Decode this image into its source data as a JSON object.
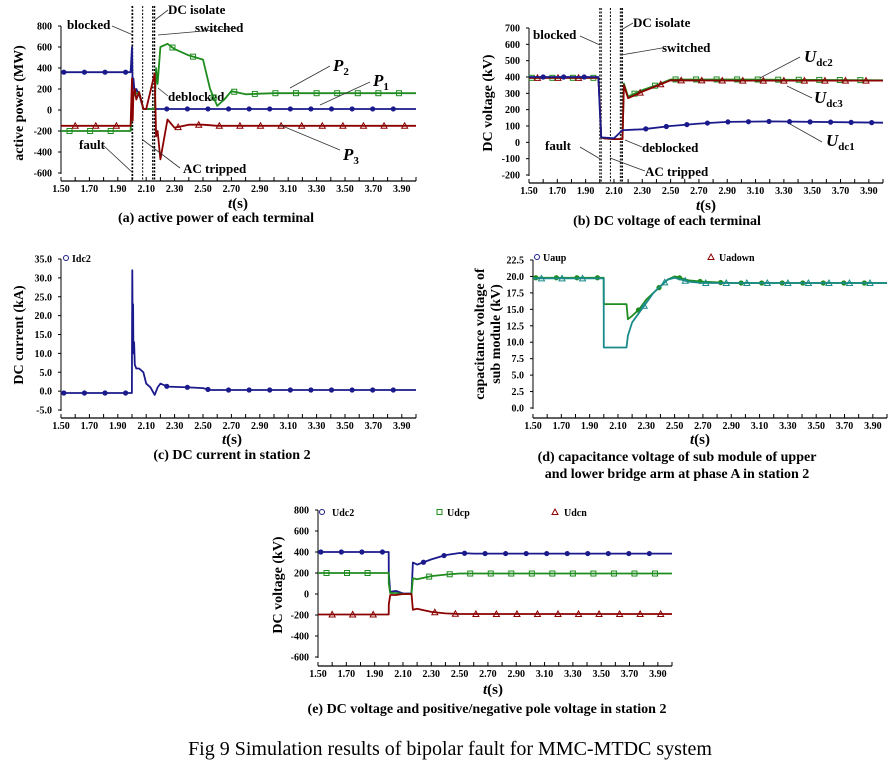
{
  "figure_caption": "Fig 9 Simulation results of bipolar fault for MMC-MTDC system",
  "colors": {
    "blue": "#1a1a8c",
    "green": "#1e8c1e",
    "red": "#8b0000",
    "teal": "#1a8a8a",
    "purple": "#7a1a7a"
  },
  "chart_data": [
    {
      "id": "a",
      "type": "line",
      "caption": "(a) active power of each terminal",
      "xlabel_var": "t",
      "xlabel_unit": "(s)",
      "ylabel": "active power (MW)",
      "xlim": [
        1.5,
        4.0
      ],
      "ylim": [
        -600,
        800
      ],
      "xticks": [
        "1.50",
        "1.70",
        "1.90",
        "2.10",
        "2.30",
        "2.50",
        "2.70",
        "2.90",
        "3.10",
        "3.30",
        "3.50",
        "3.70",
        "3.90"
      ],
      "yticks": [
        "800",
        "600",
        "400",
        "200",
        "0",
        "-200",
        "-400",
        "-600"
      ],
      "ytick_values": [
        800,
        600,
        400,
        200,
        0,
        -200,
        -400,
        -600
      ],
      "event_lines": [
        2.0,
        2.005,
        2.075,
        2.145,
        2.155,
        2.16
      ],
      "annotations": [
        "blocked",
        "DC isolate",
        "switched",
        "deblocked",
        "fault",
        "AC tripped"
      ],
      "series": [
        {
          "name": "P1",
          "label_main": "P",
          "label_sub": "1",
          "color": "blue",
          "marker": "circle",
          "x": [
            1.5,
            1.99,
            2.0,
            2.005,
            2.01,
            2.02,
            2.03,
            2.05,
            2.08,
            2.1,
            2.16,
            2.17,
            2.3,
            2.5,
            3.0,
            3.5,
            4.0
          ],
          "y": [
            360,
            360,
            600,
            200,
            300,
            150,
            200,
            150,
            10,
            10,
            10,
            10,
            10,
            10,
            10,
            10,
            10
          ]
        },
        {
          "name": "P2",
          "label_main": "P",
          "label_sub": "2",
          "color": "green",
          "marker": "square",
          "x": [
            1.5,
            1.99,
            2.0,
            2.02,
            2.05,
            2.08,
            2.1,
            2.16,
            2.17,
            2.18,
            2.2,
            2.25,
            2.3,
            2.4,
            2.5,
            2.55,
            2.6,
            2.65,
            2.7,
            2.8,
            2.9,
            3.0,
            3.5,
            4.0
          ],
          "y": [
            -200,
            -200,
            100,
            150,
            170,
            10,
            10,
            10,
            400,
            250,
            600,
            630,
            580,
            520,
            480,
            200,
            40,
            100,
            180,
            150,
            155,
            160,
            160,
            160
          ]
        },
        {
          "name": "P3",
          "label_main": "P",
          "label_sub": "3",
          "color": "red",
          "marker": "triangle",
          "x": [
            1.5,
            1.99,
            2.0,
            2.005,
            2.01,
            2.02,
            2.03,
            2.05,
            2.08,
            2.1,
            2.16,
            2.17,
            2.18,
            2.2,
            2.25,
            2.3,
            2.4,
            2.5,
            2.6,
            2.7,
            3.0,
            3.5,
            4.0
          ],
          "y": [
            -150,
            -150,
            300,
            -100,
            150,
            200,
            100,
            170,
            10,
            10,
            350,
            -250,
            -200,
            -470,
            -90,
            -170,
            -140,
            -140,
            -150,
            -150,
            -150,
            -150,
            -150
          ]
        }
      ]
    },
    {
      "id": "b",
      "type": "line",
      "caption": "(b) DC voltage of each terminal",
      "xlabel_var": "t",
      "xlabel_unit": "(s)",
      "ylabel": "DC voltage (kV)",
      "xlim": [
        1.5,
        4.0
      ],
      "ylim": [
        -200,
        700
      ],
      "xticks": [
        "1.50",
        "1.70",
        "1.90",
        "2.10",
        "2.30",
        "2.50",
        "2.70",
        "2.90",
        "3.10",
        "3.30",
        "3.50",
        "3.70",
        "3.90"
      ],
      "yticks": [
        "700",
        "600",
        "500",
        "400",
        "300",
        "200",
        "100",
        "0",
        "-100",
        "-200"
      ],
      "ytick_values": [
        700,
        600,
        500,
        400,
        300,
        200,
        100,
        0,
        -100,
        -200
      ],
      "event_lines": [
        2.0,
        2.01,
        2.075,
        2.145,
        2.155,
        2.16
      ],
      "annotations": [
        "blocked",
        "DC isolate",
        "switched",
        "deblocked",
        "fault",
        "AC tripped"
      ],
      "series": [
        {
          "name": "Udc2",
          "label_main": "U",
          "label_sub": "dc2",
          "color": "green",
          "marker": "square",
          "x": [
            1.5,
            1.99,
            2.0,
            2.01,
            2.03,
            2.1,
            2.16,
            2.17,
            2.2,
            2.3,
            2.4,
            2.5,
            3.0,
            4.0
          ],
          "y": [
            395,
            395,
            230,
            30,
            25,
            20,
            20,
            360,
            280,
            320,
            350,
            385,
            385,
            380
          ]
        },
        {
          "name": "Udc3",
          "label_main": "U",
          "label_sub": "dc3",
          "color": "red",
          "marker": "triangle",
          "x": [
            1.5,
            1.99,
            2.0,
            2.01,
            2.03,
            2.1,
            2.16,
            2.17,
            2.2,
            2.3,
            2.4,
            2.5,
            3.0,
            4.0
          ],
          "y": [
            395,
            395,
            230,
            30,
            25,
            20,
            20,
            350,
            270,
            310,
            345,
            380,
            378,
            378
          ]
        },
        {
          "name": "Udc1",
          "label_main": "U",
          "label_sub": "dc1",
          "color": "blue",
          "marker": "circle",
          "x": [
            1.5,
            1.99,
            2.0,
            2.01,
            2.1,
            2.16,
            2.17,
            2.3,
            2.5,
            2.7,
            2.9,
            3.2,
            4.0
          ],
          "y": [
            400,
            400,
            200,
            30,
            25,
            75,
            75,
            80,
            100,
            115,
            125,
            128,
            120
          ]
        }
      ]
    },
    {
      "id": "c",
      "type": "line",
      "caption": "(c) DC current in station 2",
      "xlabel_var": "t",
      "xlabel_unit": "(s)",
      "ylabel": "DC current (kA)",
      "xlim": [
        1.5,
        4.0
      ],
      "ylim": [
        -5,
        35
      ],
      "xticks": [
        "1.50",
        "1.70",
        "1.90",
        "2.10",
        "2.30",
        "2.50",
        "2.70",
        "2.90",
        "3.10",
        "3.30",
        "3.50",
        "3.70",
        "3.90"
      ],
      "yticks": [
        "35.0",
        "30.0",
        "25.0",
        "20.0",
        "15.0",
        "10.0",
        "5.0",
        "0.0",
        "-5.0"
      ],
      "ytick_values": [
        35,
        30,
        25,
        20,
        15,
        10,
        5,
        0,
        -5
      ],
      "legend": [
        "Idc2"
      ],
      "series": [
        {
          "name": "Idc2",
          "color": "blue",
          "marker": "circle",
          "x": [
            1.5,
            1.999,
            2.0,
            2.002,
            2.005,
            2.008,
            2.01,
            2.015,
            2.02,
            2.03,
            2.05,
            2.08,
            2.1,
            2.13,
            2.16,
            2.18,
            2.2,
            2.25,
            2.4,
            2.5,
            2.55,
            2.7,
            3.0,
            4.0
          ],
          "y": [
            -0.5,
            -0.5,
            11,
            32,
            15,
            23,
            10,
            13,
            7,
            6,
            6,
            5,
            2,
            1,
            -1,
            1,
            2,
            1.2,
            1,
            0.8,
            0.3,
            0.3,
            0.3,
            0.3
          ]
        }
      ]
    },
    {
      "id": "d",
      "type": "line",
      "caption_line1": "(d) capacitance voltage of sub module of upper",
      "caption_line2": "and lower bridge arm at phase A in station 2",
      "xlabel_var": "t",
      "xlabel_unit": "(s)",
      "ylabel_line1": "capacitance voltage of",
      "ylabel_line2": "sub module (kV)",
      "xlim": [
        1.5,
        4.0
      ],
      "ylim": [
        0,
        22.5
      ],
      "xticks": [
        "1.50",
        "1.70",
        "1.90",
        "2.10",
        "2.30",
        "2.50",
        "2.70",
        "2.90",
        "3.10",
        "3.30",
        "3.50",
        "3.70",
        "3.90"
      ],
      "yticks": [
        "22.5",
        "20.0",
        "17.5",
        "15.0",
        "12.5",
        "10.0",
        "7.5",
        "5.0",
        "2.5",
        "0.0"
      ],
      "ytick_values": [
        22.5,
        20,
        17.5,
        15,
        12.5,
        10,
        7.5,
        5,
        2.5,
        0
      ],
      "legend": [
        "Uaup",
        "Uadown"
      ],
      "series": [
        {
          "name": "Uaup",
          "color": "green",
          "marker": "circle",
          "x": [
            1.5,
            1.999,
            2.0,
            2.16,
            2.17,
            2.2,
            2.25,
            2.3,
            2.35,
            2.4,
            2.45,
            2.5,
            2.6,
            2.7,
            2.9,
            3.2,
            4.0
          ],
          "y": [
            19.8,
            19.8,
            15.8,
            15.8,
            13.5,
            14,
            15,
            16.5,
            17.5,
            18.5,
            19.5,
            20,
            19.4,
            19.2,
            19,
            19,
            19
          ]
        },
        {
          "name": "Uadown",
          "color": "teal",
          "marker": "triangle",
          "x": [
            1.5,
            1.999,
            2.0,
            2.16,
            2.17,
            2.2,
            2.25,
            2.3,
            2.35,
            2.4,
            2.45,
            2.5,
            2.6,
            2.7,
            2.9,
            3.2,
            4.0
          ],
          "y": [
            19.7,
            19.7,
            9.2,
            9.2,
            11,
            13,
            14.5,
            16,
            17.5,
            18.5,
            19.5,
            19.8,
            19.2,
            19,
            19,
            19,
            19
          ]
        }
      ]
    },
    {
      "id": "e",
      "type": "line",
      "caption": "(e) DC voltage and positive/negative pole voltage in station 2",
      "xlabel_var": "t",
      "xlabel_unit": "(s)",
      "ylabel": "DC voltage (kV)",
      "xlim": [
        1.5,
        4.0
      ],
      "ylim": [
        -600,
        800
      ],
      "xticks": [
        "1.50",
        "1.70",
        "1.90",
        "2.10",
        "2.30",
        "2.50",
        "2.70",
        "2.90",
        "3.10",
        "3.30",
        "3.50",
        "3.70",
        "3.90"
      ],
      "yticks": [
        "800",
        "600",
        "400",
        "200",
        "0",
        "-200",
        "-400",
        "-600"
      ],
      "ytick_values": [
        800,
        600,
        400,
        200,
        0,
        -200,
        -400,
        -600
      ],
      "legend": [
        "Udc2",
        "Udcp",
        "Udcn"
      ],
      "series": [
        {
          "name": "Udc2",
          "color": "blue",
          "marker": "circle",
          "x": [
            1.5,
            1.999,
            2.0,
            2.01,
            2.05,
            2.1,
            2.16,
            2.17,
            2.2,
            2.3,
            2.4,
            2.5,
            2.6,
            3.0,
            4.0
          ],
          "y": [
            400,
            400,
            200,
            20,
            30,
            5,
            5,
            300,
            280,
            330,
            370,
            390,
            385,
            385,
            385
          ]
        },
        {
          "name": "Udcp",
          "color": "green",
          "marker": "square",
          "x": [
            1.5,
            1.999,
            2.0,
            2.01,
            2.05,
            2.1,
            2.16,
            2.17,
            2.2,
            2.3,
            2.4,
            2.5,
            3.0,
            4.0
          ],
          "y": [
            200,
            200,
            100,
            10,
            10,
            0,
            0,
            150,
            140,
            170,
            185,
            195,
            195,
            195
          ]
        },
        {
          "name": "Udcn",
          "color": "red",
          "marker": "triangle",
          "x": [
            1.5,
            1.999,
            2.0,
            2.01,
            2.05,
            2.1,
            2.16,
            2.17,
            2.2,
            2.3,
            2.4,
            2.5,
            3.0,
            4.0
          ],
          "y": [
            -195,
            -195,
            -100,
            -10,
            -10,
            0,
            0,
            -150,
            -140,
            -170,
            -185,
            -190,
            -190,
            -190
          ]
        }
      ]
    }
  ]
}
